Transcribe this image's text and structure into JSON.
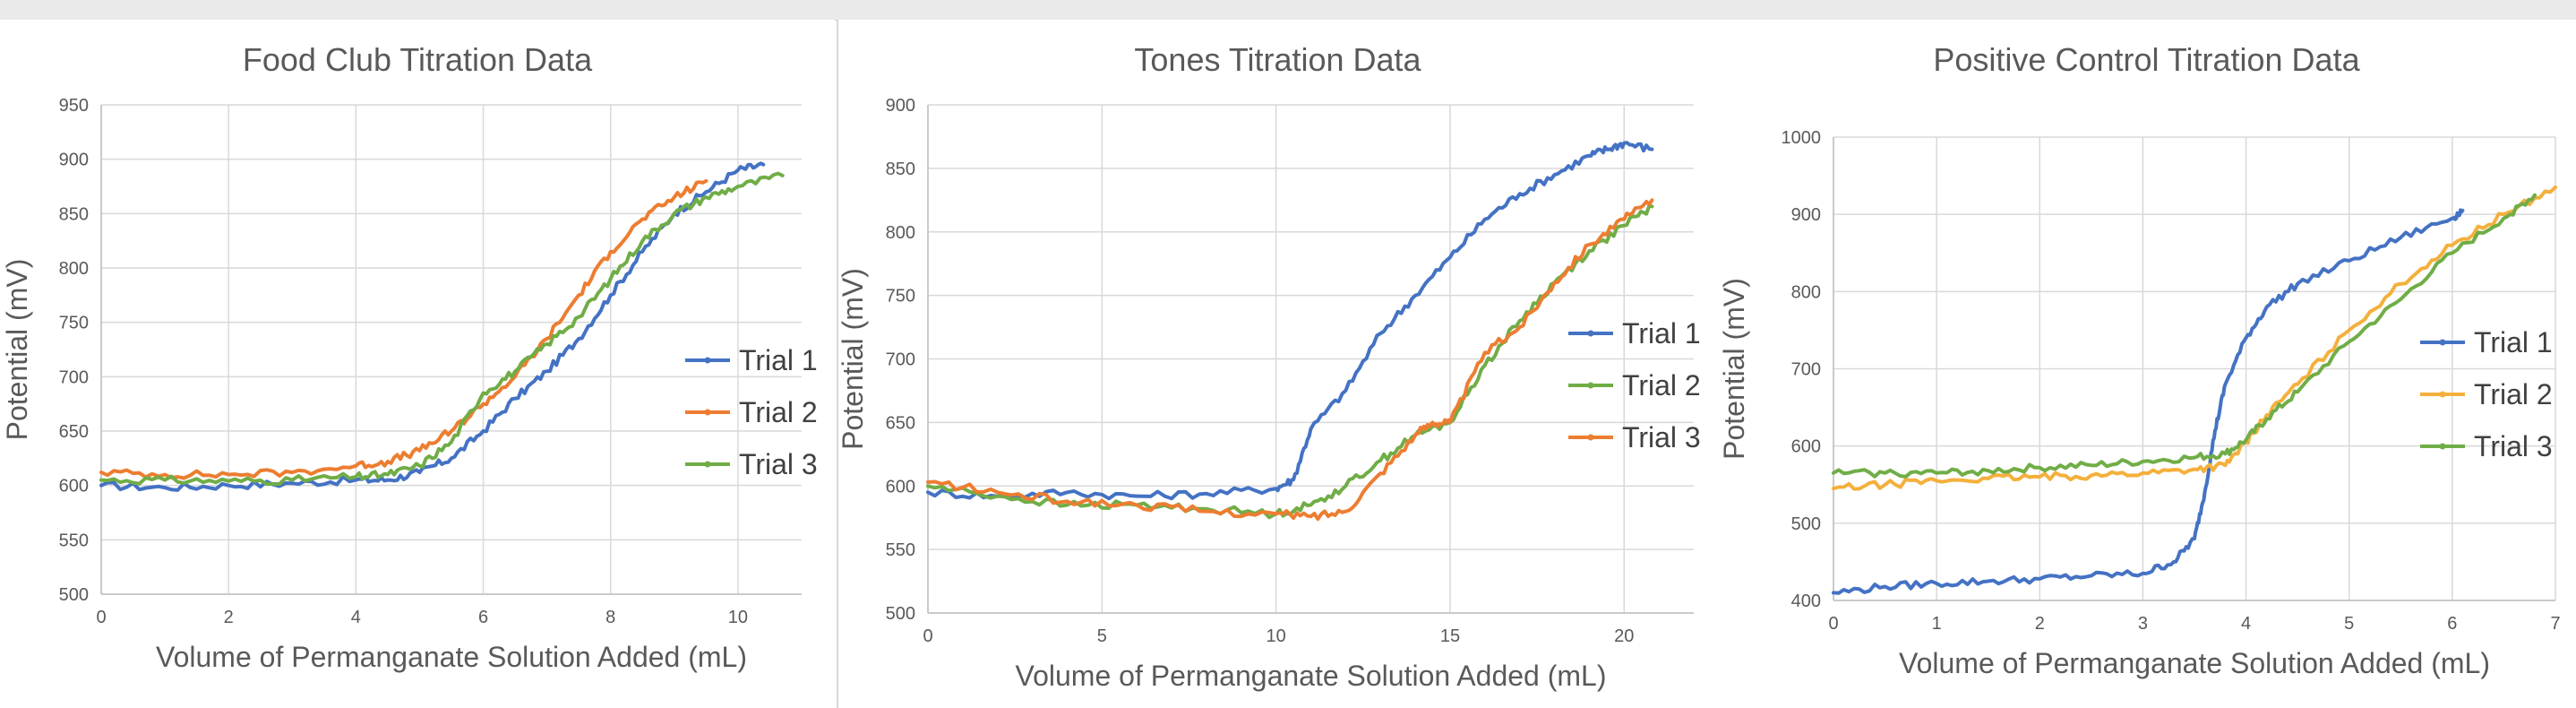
{
  "chart_data": [
    {
      "type": "line",
      "title": "Food Club Titration Data",
      "xlabel": "Volume of Permanganate Solution Added (mL)",
      "ylabel": "Potential (mV)",
      "xlim": [
        0,
        11
      ],
      "ylim": [
        500,
        950
      ],
      "xticks": [
        0,
        2,
        4,
        6,
        8,
        10
      ],
      "yticks": [
        500,
        550,
        600,
        650,
        700,
        750,
        800,
        850,
        900,
        950
      ],
      "grid": true,
      "legend": "right",
      "series": [
        {
          "name": "Trial 1",
          "color": "#4472c4",
          "x": [
            0,
            1,
            2,
            3,
            4,
            4.5,
            5,
            5.5,
            6,
            6.5,
            7,
            7.5,
            8,
            8.5,
            9,
            9.5,
            10,
            10.4
          ],
          "y": [
            600,
            598,
            600,
            602,
            605,
            605,
            612,
            625,
            650,
            680,
            705,
            735,
            775,
            815,
            850,
            870,
            890,
            895
          ]
        },
        {
          "name": "Trial 2",
          "color": "#ed7d31",
          "x": [
            0,
            1,
            2,
            3,
            4,
            4.5,
            5,
            5.5,
            6,
            6.5,
            7,
            7.5,
            8,
            8.5,
            9,
            9.5
          ],
          "y": [
            612,
            610,
            610,
            612,
            618,
            622,
            632,
            650,
            675,
            700,
            735,
            775,
            815,
            845,
            865,
            880
          ]
        },
        {
          "name": "Trial 3",
          "color": "#70ad47",
          "x": [
            0,
            1,
            2,
            3,
            4,
            4.5,
            5,
            5.5,
            6,
            6.5,
            7,
            7.5,
            8,
            8.5,
            9,
            9.5,
            10,
            10.7
          ],
          "y": [
            605,
            605,
            604,
            605,
            608,
            610,
            618,
            640,
            685,
            705,
            730,
            755,
            790,
            825,
            850,
            865,
            875,
            885
          ]
        }
      ]
    },
    {
      "type": "line",
      "title": "Tones Titration Data",
      "xlabel": "Volume of Permanganate Solution Added (mL)",
      "ylabel": "Potential (mV)",
      "xlim": [
        0,
        22
      ],
      "ylim": [
        500,
        900
      ],
      "xticks": [
        0,
        5,
        10,
        15,
        20
      ],
      "yticks": [
        500,
        550,
        600,
        650,
        700,
        750,
        800,
        850,
        900
      ],
      "grid": true,
      "legend": "right",
      "series": [
        {
          "name": "Trial 1",
          "color": "#4472c4",
          "x": [
            0,
            2,
            4,
            6,
            8,
            10,
            10.5,
            11,
            12,
            13,
            14,
            15,
            16,
            17,
            18,
            19,
            19.5,
            20,
            20.8
          ],
          "y": [
            595,
            592,
            595,
            592,
            594,
            598,
            605,
            645,
            675,
            720,
            750,
            780,
            810,
            830,
            845,
            860,
            865,
            870,
            865
          ]
        },
        {
          "name": "Trial 2",
          "color": "#70ad47",
          "x": [
            0,
            2,
            4,
            6,
            8,
            10,
            11,
            12,
            13,
            14,
            15,
            16,
            17,
            18,
            19,
            20,
            20.8
          ],
          "y": [
            600,
            592,
            585,
            585,
            582,
            578,
            585,
            600,
            620,
            640,
            650,
            695,
            730,
            760,
            785,
            805,
            820
          ]
        },
        {
          "name": "Trial 3",
          "color": "#ed7d31",
          "x": [
            0,
            2,
            4,
            6,
            8,
            10,
            11,
            12,
            13,
            14,
            14.5,
            15,
            16,
            17,
            18,
            19,
            20,
            20.8
          ],
          "y": [
            603,
            595,
            588,
            585,
            580,
            578,
            576,
            580,
            610,
            640,
            650,
            650,
            705,
            725,
            760,
            790,
            810,
            825
          ]
        }
      ]
    },
    {
      "type": "line",
      "title": "Positive Control Titration Data",
      "xlabel": "Volume of Permanganate Solution Added (mL)",
      "ylabel": "Potential (mV)",
      "xlim": [
        0,
        7
      ],
      "ylim": [
        400,
        1000
      ],
      "xticks": [
        0,
        1,
        2,
        3,
        4,
        5,
        6,
        7
      ],
      "yticks": [
        400,
        500,
        600,
        700,
        800,
        900,
        1000
      ],
      "grid": true,
      "legend": "right",
      "series": [
        {
          "name": "Trial 1",
          "color": "#4472c4",
          "x": [
            0,
            0.5,
            1,
            1.5,
            2,
            2.5,
            3,
            3.3,
            3.5,
            3.6,
            3.7,
            3.8,
            4.0,
            4.2,
            4.5,
            5.0,
            5.5,
            6.0,
            6.1
          ],
          "y": [
            410,
            418,
            422,
            425,
            428,
            432,
            435,
            450,
            480,
            540,
            620,
            680,
            740,
            780,
            810,
            840,
            870,
            895,
            905
          ]
        },
        {
          "name": "Trial 2",
          "color": "#f4b03c",
          "x": [
            0,
            0.5,
            1,
            1.5,
            2,
            2.5,
            3,
            3.5,
            3.8,
            4.0,
            4.2,
            4.5,
            5.0,
            5.5,
            6.0,
            6.5,
            7.0
          ],
          "y": [
            545,
            550,
            555,
            558,
            560,
            562,
            565,
            570,
            575,
            605,
            640,
            680,
            750,
            810,
            860,
            900,
            935
          ]
        },
        {
          "name": "Trial 3",
          "color": "#70ad47",
          "x": [
            0,
            0.5,
            1,
            1.5,
            2,
            2.5,
            3,
            3.5,
            3.8,
            4.0,
            4.2,
            4.5,
            5.0,
            5.5,
            6.0,
            6.5,
            6.8
          ],
          "y": [
            565,
            565,
            565,
            568,
            572,
            575,
            580,
            585,
            590,
            608,
            635,
            670,
            735,
            790,
            850,
            895,
            925
          ]
        }
      ]
    }
  ]
}
